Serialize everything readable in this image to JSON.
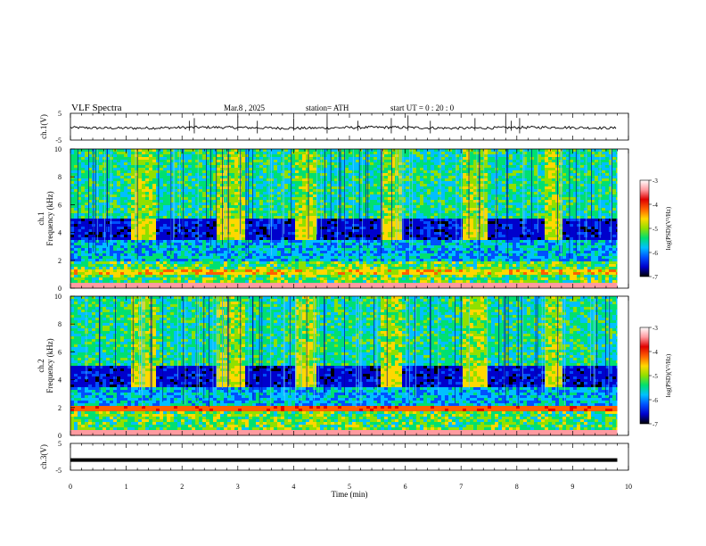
{
  "header": {
    "title": "VLF  Spectra",
    "date": "Mar.8  , 2025",
    "station": "station= ATH",
    "start": "start  UT  =    0  : 20 : 0"
  },
  "colorbar": {
    "label": "log(PSD)(V²/Hz)",
    "ticks": [
      -3,
      -4,
      -5,
      -6,
      -7
    ],
    "vmin": -7,
    "vmax": -3,
    "colors": [
      "#000000",
      "#0000cc",
      "#0050ff",
      "#00c0ff",
      "#00e070",
      "#90e000",
      "#ffd800",
      "#ff6000",
      "#e00000",
      "#ff9aa0",
      "#ffffff"
    ]
  },
  "chart_data": [
    {
      "type": "line",
      "name": "ch1-waveform",
      "ylabel": "ch.1(V)",
      "ylim": [
        -5,
        5
      ],
      "yticks": [
        5,
        -5
      ],
      "xlim": [
        0,
        10
      ],
      "baseline_v": -0.4,
      "noise_v": 0.5,
      "spikes_min": [
        2.13,
        2.22,
        3.0,
        3.35,
        4.0,
        4.6,
        5.15,
        5.75,
        6.05,
        6.45,
        7.25,
        7.8,
        7.9,
        8.05
      ]
    },
    {
      "type": "heatmap",
      "name": "ch1-spectrogram",
      "ylabel": "Frequency  (kHz)",
      "ylabel2": "ch.1",
      "ylim": [
        0,
        10
      ],
      "yticks": [
        0,
        2,
        4,
        6,
        8,
        10
      ],
      "xlim": [
        0,
        10
      ],
      "data_end_min": 9.8,
      "dark_band_khz": [
        3.5,
        5.0
      ],
      "bursts_min": [
        [
          1.08,
          1.5
        ],
        [
          2.6,
          3.1
        ],
        [
          4.0,
          4.4
        ],
        [
          5.5,
          5.88
        ],
        [
          7.0,
          7.42
        ],
        [
          8.45,
          8.8
        ]
      ]
    },
    {
      "type": "heatmap",
      "name": "ch2-spectrogram",
      "ylabel": "Frequency  (kHz)",
      "ylabel2": "ch.2",
      "ylim": [
        0,
        10
      ],
      "yticks": [
        0,
        2,
        4,
        6,
        8,
        10
      ],
      "xlim": [
        0,
        10
      ],
      "data_end_min": 9.8,
      "dark_band_khz": [
        3.5,
        5.0
      ],
      "bursts_min": [
        [
          1.08,
          1.5
        ],
        [
          2.6,
          3.1
        ],
        [
          4.0,
          4.4
        ],
        [
          5.5,
          5.88
        ],
        [
          7.0,
          7.42
        ],
        [
          8.45,
          8.8
        ]
      ]
    },
    {
      "type": "line",
      "name": "ch3-waveform",
      "ylabel": "ch.3(V)",
      "ylim": [
        -5,
        5
      ],
      "yticks": [
        5,
        -5
      ],
      "xlim": [
        0,
        10
      ],
      "baseline_v": -1.2
    }
  ],
  "xaxis": {
    "label": "Time  (min)",
    "ticks": [
      0,
      1,
      2,
      3,
      4,
      5,
      6,
      7,
      8,
      9,
      10
    ]
  }
}
